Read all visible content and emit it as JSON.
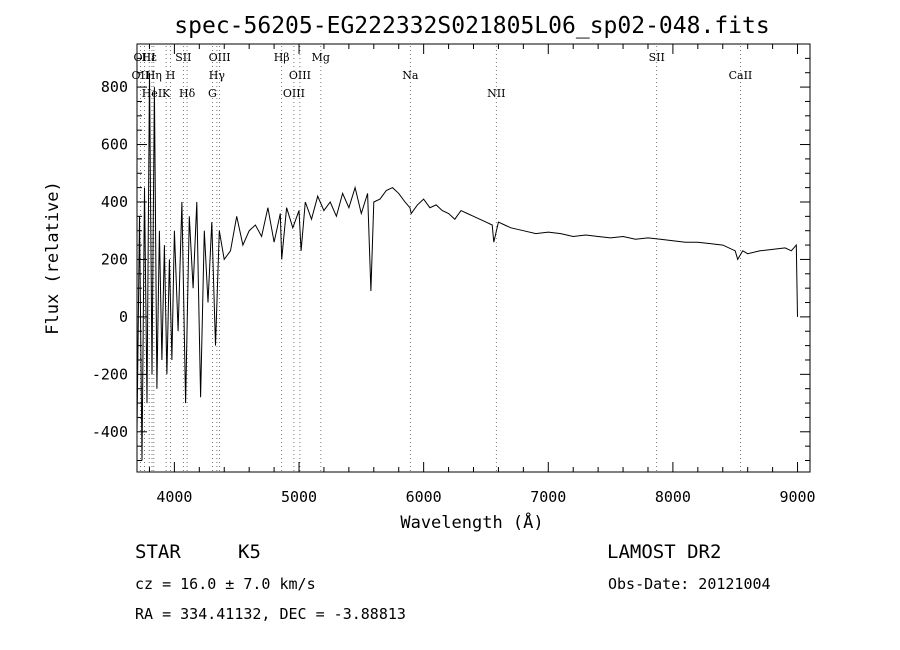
{
  "chart_data": {
    "type": "line",
    "title": "spec-56205-EG222332S021805L06_sp02-048.fits",
    "xlabel": "Wavelength (Å)",
    "ylabel": "Flux (relative)",
    "xlim": [
      3700,
      9100
    ],
    "ylim": [
      -540,
      950
    ],
    "xticks": [
      4000,
      5000,
      6000,
      7000,
      8000,
      9000
    ],
    "yticks": [
      -400,
      -200,
      0,
      200,
      400,
      600,
      800
    ],
    "grid": false,
    "series": [
      {
        "x": [
          3700,
          3720,
          3740,
          3760,
          3780,
          3800,
          3820,
          3840,
          3860,
          3880,
          3900,
          3920,
          3940,
          3960,
          3980,
          4000,
          4030,
          4060,
          4090,
          4120,
          4150,
          4180,
          4210,
          4240,
          4270,
          4300,
          4330,
          4360,
          4400,
          4450,
          4500,
          4550,
          4600,
          4650,
          4700,
          4750,
          4800,
          4850,
          4861,
          4900,
          4950,
          5000,
          5017,
          5050,
          5100,
          5150,
          5200,
          5250,
          5300,
          5350,
          5400,
          5450,
          5500,
          5550,
          5577,
          5600,
          5650,
          5700,
          5750,
          5800,
          5850,
          5890,
          5900,
          5950,
          6000,
          6050,
          6100,
          6150,
          6200,
          6250,
          6300,
          6350,
          6400,
          6450,
          6500,
          6550,
          6563,
          6600,
          6650,
          6700,
          6800,
          6900,
          7000,
          7100,
          7200,
          7300,
          7400,
          7500,
          7600,
          7700,
          7800,
          7900,
          8000,
          8100,
          8200,
          8300,
          8400,
          8500,
          8520,
          8560,
          8600,
          8700,
          8800,
          8900,
          8950,
          8990,
          9000
        ],
        "y": [
          -400,
          350,
          -500,
          450,
          -300,
          850,
          -200,
          800,
          -250,
          300,
          -150,
          250,
          -200,
          200,
          -150,
          300,
          -50,
          400,
          -300,
          350,
          100,
          400,
          -280,
          300,
          50,
          330,
          -100,
          300,
          200,
          230,
          350,
          250,
          300,
          320,
          280,
          380,
          260,
          360,
          200,
          380,
          310,
          370,
          230,
          400,
          340,
          420,
          370,
          400,
          350,
          430,
          380,
          450,
          360,
          430,
          90,
          400,
          410,
          440,
          450,
          430,
          400,
          380,
          360,
          390,
          410,
          380,
          390,
          370,
          360,
          340,
          370,
          360,
          350,
          340,
          330,
          320,
          260,
          330,
          320,
          310,
          300,
          290,
          295,
          290,
          280,
          285,
          280,
          275,
          280,
          270,
          275,
          270,
          265,
          260,
          260,
          255,
          250,
          230,
          200,
          230,
          220,
          230,
          235,
          240,
          230,
          250,
          0
        ]
      }
    ],
    "annotations": [
      {
        "label": "Hε",
        "x": 3798
      },
      {
        "label": "OII",
        "x": 3727
      },
      {
        "label": "HeI",
        "x": 3820
      },
      {
        "label": "OIII",
        "x": 3760
      },
      {
        "label": "Hη",
        "x": 3835
      },
      {
        "label": "K",
        "x": 3934
      },
      {
        "label": "SII",
        "x": 4072
      },
      {
        "label": "H",
        "x": 3969
      },
      {
        "label": "Hδ",
        "x": 4102
      },
      {
        "label": "OIII",
        "x": 4363
      },
      {
        "label": "Hγ",
        "x": 4341
      },
      {
        "label": "G",
        "x": 4305
      },
      {
        "label": "Hβ",
        "x": 4861
      },
      {
        "label": "OIII",
        "x": 5007
      },
      {
        "label": "OIII",
        "x": 4959
      },
      {
        "label": "Mg",
        "x": 5175
      },
      {
        "label": "Na",
        "x": 5893
      },
      {
        "label": "NII",
        "x": 6583
      },
      {
        "label": "SII",
        "x": 7870
      },
      {
        "label": "CaII",
        "x": 8542
      }
    ]
  },
  "footer": {
    "class_label": "STAR",
    "subclass": "K5",
    "survey": "LAMOST DR2",
    "cz": "cz = 16.0 ± 7.0 km/s",
    "obs_date": "Obs-Date: 20121004",
    "coords": "RA = 334.41132, DEC =  -3.88813"
  }
}
